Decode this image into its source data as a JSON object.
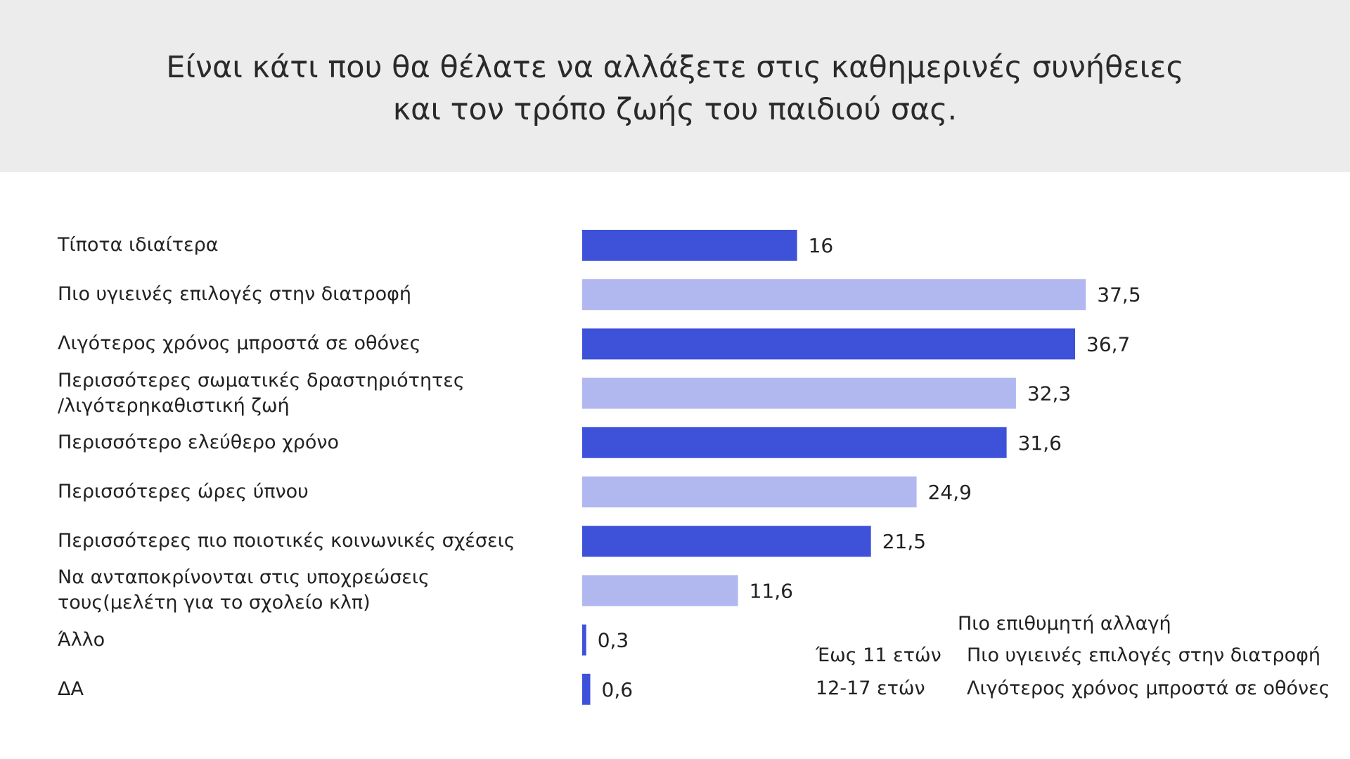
{
  "title_lines": [
    "Είναι κάτι που θα θέλατε να αλλάξετε στις καθημερινές συνήθειες",
    "και τον τρόπο ζωής του παιδιού σας."
  ],
  "chart_data": {
    "type": "bar",
    "orientation": "horizontal",
    "title": "Είναι κάτι που θα θέλατε να αλλάξετε στις καθημερινές συνήθειες και τον τρόπο ζωής του παιδιού σας.",
    "categories": [
      "Τίποτα ιδιαίτερα",
      "Πιο υγιεινές επιλογές στην διατροφή",
      "Λιγότερος χρόνος μπροστά σε οθόνες",
      "Περισσότερες σωματικές δραστηριότητες\n/λιγότερηκαθιστική ζωή",
      "Περισσότερο ελεύθερο χρόνο",
      "Περισσότερες ώρες ύπνου",
      "Περισσότερες πιο ποιοτικές κοινωνικές σχέσεις",
      "Να ανταποκρίνονται στις υποχρεώσεις\nτους(μελέτη για το σχολείο κλπ)",
      "Άλλο",
      "ΔΑ"
    ],
    "values": [
      16,
      37.5,
      36.7,
      32.3,
      31.6,
      24.9,
      21.5,
      11.6,
      0.3,
      0.6
    ],
    "value_labels": [
      "16",
      "37,5",
      "36,7",
      "32,3",
      "31,6",
      "24,9",
      "21,5",
      "11,6",
      "0,3",
      "0,6"
    ],
    "xlim": [
      0,
      40
    ],
    "grid": false,
    "bar_colors": [
      "#3d51d9",
      "#b1b8ef",
      "#3d51d9",
      "#b1b8ef",
      "#3d51d9",
      "#b1b8ef",
      "#3d51d9",
      "#b1b8ef",
      "#3d51d9",
      "#3d51d9"
    ]
  },
  "note": {
    "heading": "Πιο επιθυμητή αλλαγή",
    "rows": [
      {
        "group": "Έως 11 ετών",
        "change": "Πιο υγιεινές επιλογές στην διατροφή"
      },
      {
        "group": "12-17 ετών",
        "change": "Λιγότερος χρόνος μπροστά σε οθόνες"
      }
    ]
  }
}
